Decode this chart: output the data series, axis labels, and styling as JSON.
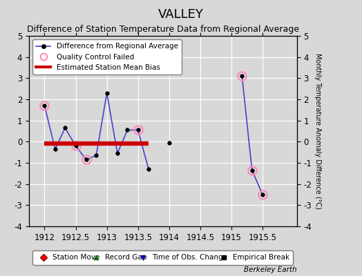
{
  "title": "VALLEY",
  "subtitle": "Difference of Station Temperature Data from Regional Average",
  "ylabel_right": "Monthly Temperature Anomaly Difference (°C)",
  "xlim": [
    1911.75,
    1916.05
  ],
  "ylim": [
    -4,
    5
  ],
  "yticks": [
    -4,
    -3,
    -2,
    -1,
    0,
    1,
    2,
    3,
    4,
    5
  ],
  "xticks": [
    1912,
    1912.5,
    1913,
    1913.5,
    1914,
    1914.5,
    1915,
    1915.5
  ],
  "background_color": "#d8d8d8",
  "plot_bg_color": "#d8d8d8",
  "line_color": "#4444cc",
  "segments": [
    {
      "x": [
        1912.0,
        1912.17,
        1912.33,
        1912.5,
        1912.67,
        1912.83,
        1913.0,
        1913.17,
        1913.33,
        1913.5,
        1913.67
      ],
      "y": [
        1.7,
        -0.35,
        0.65,
        -0.2,
        -0.85,
        -0.65,
        2.3,
        -0.55,
        0.55,
        0.55,
        -1.3
      ]
    },
    {
      "x": [
        1914.0
      ],
      "y": [
        -0.07
      ]
    },
    {
      "x": [
        1915.17,
        1915.33,
        1915.5
      ],
      "y": [
        3.1,
        -1.35,
        -2.5
      ]
    }
  ],
  "qc_failed_x": [
    1912.0,
    1912.5,
    1912.67,
    1913.5,
    1915.17,
    1915.33,
    1915.5
  ],
  "qc_failed_y": [
    1.7,
    -0.2,
    -0.85,
    0.55,
    3.1,
    -1.35,
    -2.5
  ],
  "bias_x_start": 1912.0,
  "bias_x_end": 1913.67,
  "bias_y": -0.1,
  "bias_color": "#cc0000",
  "title_fontsize": 13,
  "subtitle_fontsize": 9,
  "tick_fontsize": 8.5,
  "footer_text": "Berkeley Earth",
  "legend1_labels": [
    "Difference from Regional Average",
    "Quality Control Failed",
    "Estimated Station Mean Bias"
  ],
  "legend2_labels": [
    "Station Move",
    "Record Gap",
    "Time of Obs. Change",
    "Empirical Break"
  ]
}
